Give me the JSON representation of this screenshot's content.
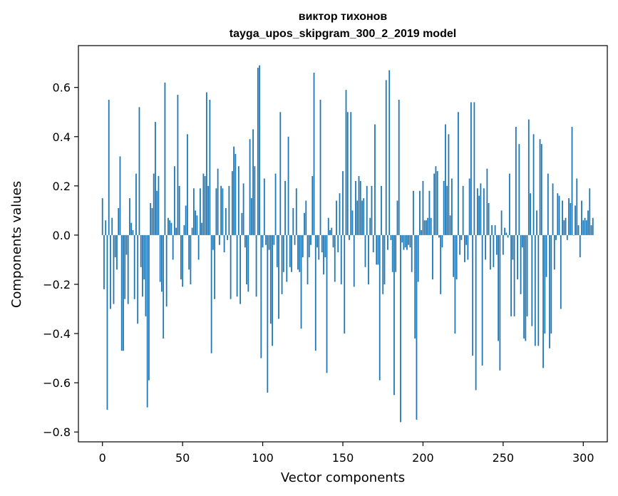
{
  "chart_data": {
    "type": "bar",
    "title_line1": "виктор тихонов",
    "title_line2": "tayga_upos_skipgram_300_2_2019 model",
    "xlabel": "Vector components",
    "ylabel": "Components values",
    "xlim": [
      -15,
      315
    ],
    "ylim": [
      -0.84,
      0.77
    ],
    "xticks": [
      0,
      50,
      100,
      150,
      200,
      250,
      300
    ],
    "xtick_labels": [
      "0",
      "50",
      "100",
      "150",
      "200",
      "250",
      "300"
    ],
    "yticks": [
      -0.8,
      -0.6,
      -0.4,
      -0.2,
      0.0,
      0.2,
      0.4,
      0.6
    ],
    "ytick_labels": [
      "−0.8",
      "−0.6",
      "−0.4",
      "−0.2",
      "0.0",
      "0.2",
      "0.4",
      "0.6"
    ],
    "bar_color": "#1f77b4",
    "grid": false,
    "values": [
      0.15,
      -0.22,
      0.06,
      -0.71,
      0.55,
      -0.3,
      0.07,
      -0.28,
      -0.09,
      -0.14,
      0.11,
      0.32,
      -0.47,
      -0.47,
      -0.26,
      -0.08,
      -0.28,
      0.15,
      0.05,
      0.02,
      -0.26,
      0.25,
      -0.36,
      0.52,
      -0.13,
      -0.25,
      -0.18,
      -0.33,
      -0.7,
      -0.59,
      0.13,
      0.11,
      0.25,
      0.46,
      0.18,
      0.24,
      -0.19,
      -0.23,
      -0.42,
      0.62,
      -0.29,
      0.07,
      0.06,
      0.05,
      -0.1,
      0.28,
      0.03,
      0.57,
      0.2,
      -0.18,
      -0.21,
      0.04,
      0.12,
      0.41,
      -0.14,
      -0.2,
      0.03,
      0.19,
      0.1,
      0.08,
      -0.1,
      0.19,
      0.05,
      0.25,
      0.24,
      0.58,
      0.2,
      0.55,
      -0.48,
      -0.06,
      -0.26,
      0.19,
      0.27,
      -0.04,
      0.2,
      0.19,
      -0.07,
      0.11,
      -0.02,
      0.2,
      -0.26,
      0.26,
      0.36,
      0.33,
      -0.25,
      0.28,
      -0.28,
      0.09,
      0.21,
      -0.05,
      -0.2,
      -0.23,
      0.39,
      0.15,
      0.43,
      0.28,
      -0.25,
      0.68,
      0.69,
      -0.5,
      -0.05,
      0.23,
      -0.04,
      -0.64,
      -0.06,
      -0.36,
      -0.45,
      -0.04,
      0.25,
      -0.13,
      -0.34,
      0.5,
      -0.24,
      -0.15,
      0.22,
      -0.19,
      0.4,
      -0.13,
      -0.15,
      0.11,
      -0.04,
      0.19,
      -0.14,
      -0.15,
      -0.38,
      -0.09,
      0.09,
      0.14,
      -0.2,
      -0.09,
      -0.04,
      0.24,
      0.66,
      -0.47,
      -0.05,
      -0.1,
      0.55,
      -0.07,
      -0.16,
      -0.09,
      -0.56,
      0.07,
      0.02,
      0.03,
      -0.05,
      -0.19,
      0.14,
      -0.07,
      0.17,
      -0.2,
      0.26,
      -0.4,
      0.59,
      0.5,
      -0.02,
      0.5,
      0.1,
      -0.21,
      0.22,
      0.14,
      0.24,
      0.22,
      0.14,
      0.15,
      -0.13,
      0.2,
      -0.2,
      0.07,
      0.2,
      -0.07,
      0.45,
      -0.12,
      -0.12,
      -0.59,
      0.2,
      -0.24,
      -0.2,
      0.63,
      -0.06,
      0.67,
      -0.02,
      -0.15,
      -0.65,
      -0.15,
      0.14,
      0.55,
      -0.76,
      -0.03,
      -0.06,
      -0.05,
      -0.06,
      -0.04,
      -0.05,
      -0.15,
      0.18,
      -0.42,
      -0.75,
      -0.19,
      0.18,
      0.02,
      0.22,
      0.06,
      0.06,
      0.07,
      0.18,
      0.07,
      -0.18,
      0.25,
      0.28,
      0.26,
      -0.01,
      -0.24,
      -0.05,
      0.22,
      0.45,
      0.2,
      0.41,
      0.08,
      0.23,
      -0.17,
      -0.4,
      -0.18,
      0.5,
      -0.08,
      -0.02,
      0.2,
      -0.11,
      -0.04,
      -0.1,
      0.23,
      0.54,
      -0.49,
      0.54,
      -0.63,
      0.19,
      0.16,
      0.21,
      -0.53,
      0.19,
      -0.1,
      0.27,
      0.13,
      -0.14,
      0.04,
      -0.13,
      0.04,
      -0.08,
      -0.43,
      -0.55,
      0.1,
      -0.08,
      0.03,
      0.01,
      -0.01,
      0.25,
      -0.33,
      -0.1,
      -0.33,
      0.44,
      -0.18,
      0.37,
      -0.24,
      -0.05,
      -0.42,
      -0.43,
      -0.33,
      0.47,
      0.17,
      -0.37,
      0.41,
      -0.45,
      0.1,
      -0.45,
      0.39,
      0.37,
      -0.54,
      -0.4,
      -0.17,
      0.25,
      -0.46,
      -0.4,
      0.21,
      -0.14,
      -0.02,
      0.17,
      0.16,
      -0.3,
      0.14,
      0.06,
      0.07,
      -0.02,
      0.15,
      0.13,
      0.44,
      0.0,
      0.12,
      0.23,
      0.04,
      -0.09,
      0.14,
      0.06,
      0.07,
      0.06,
      0.1,
      0.19,
      0.04,
      0.07
    ]
  }
}
